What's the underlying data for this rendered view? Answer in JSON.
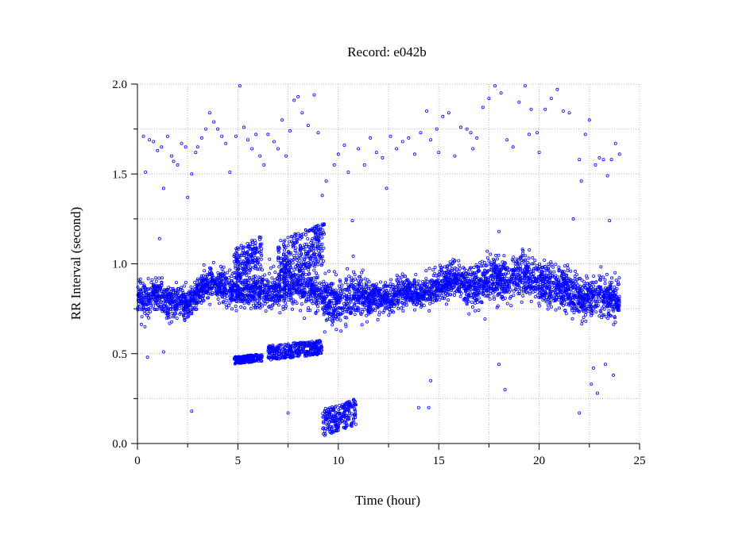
{
  "chart_data": {
    "type": "scatter",
    "title": "Record:  e042b",
    "xlabel": "Time (hour)",
    "ylabel": "RR Interval (second)",
    "xlim": [
      0,
      25
    ],
    "ylim": [
      0,
      2
    ],
    "xticks": [
      "0",
      "5",
      "10",
      "15",
      "20",
      "25"
    ],
    "yticks": [
      "0.0",
      "0.5",
      "1.0",
      "1.5",
      "2.0"
    ],
    "grid": true,
    "marker_color": "#0000ff",
    "series": [
      {
        "baseline": [
          [
            0.0,
            0.82
          ],
          [
            0.5,
            0.8
          ],
          [
            1.0,
            0.84
          ],
          [
            1.5,
            0.78
          ],
          [
            2.0,
            0.8
          ],
          [
            2.5,
            0.76
          ],
          [
            3.0,
            0.84
          ],
          [
            3.5,
            0.9
          ],
          [
            4.0,
            0.88
          ],
          [
            4.5,
            0.86
          ],
          [
            5.0,
            0.85
          ],
          [
            5.5,
            0.84
          ],
          [
            6.0,
            0.86
          ],
          [
            6.5,
            0.84
          ],
          [
            7.0,
            0.85
          ],
          [
            7.5,
            0.86
          ],
          [
            8.0,
            0.88
          ],
          [
            8.5,
            0.86
          ],
          [
            9.0,
            0.82
          ],
          [
            9.5,
            0.8
          ],
          [
            10.0,
            0.78
          ],
          [
            10.5,
            0.8
          ],
          [
            11.0,
            0.82
          ],
          [
            11.5,
            0.8
          ],
          [
            12.0,
            0.8
          ],
          [
            12.5,
            0.82
          ],
          [
            13.0,
            0.84
          ],
          [
            13.5,
            0.84
          ],
          [
            14.0,
            0.82
          ],
          [
            14.5,
            0.86
          ],
          [
            15.0,
            0.88
          ],
          [
            15.5,
            0.9
          ],
          [
            16.0,
            0.9
          ],
          [
            16.5,
            0.88
          ],
          [
            17.0,
            0.88
          ],
          [
            17.5,
            0.9
          ],
          [
            18.0,
            0.92
          ],
          [
            18.5,
            0.9
          ],
          [
            19.0,
            0.94
          ],
          [
            19.5,
            0.92
          ],
          [
            20.0,
            0.9
          ],
          [
            20.5,
            0.88
          ],
          [
            21.0,
            0.88
          ],
          [
            21.5,
            0.86
          ],
          [
            22.0,
            0.8
          ],
          [
            22.5,
            0.8
          ],
          [
            23.0,
            0.82
          ],
          [
            23.5,
            0.8
          ],
          [
            24.0,
            0.8
          ]
        ],
        "spread": [
          [
            0.0,
            0.08
          ],
          [
            3.0,
            0.07
          ],
          [
            9.0,
            0.09
          ],
          [
            10.5,
            0.12
          ],
          [
            12.0,
            0.07
          ],
          [
            15.0,
            0.08
          ],
          [
            17.5,
            0.1
          ],
          [
            21.0,
            0.1
          ],
          [
            23.0,
            0.09
          ],
          [
            24.0,
            0.08
          ]
        ],
        "clusters": [
          {
            "x": [
              4.8,
              6.2
            ],
            "y": [
              0.45,
              0.49
            ]
          },
          {
            "x": [
              6.5,
              9.2
            ],
            "y": [
              0.48,
              0.56
            ]
          },
          {
            "x": [
              9.2,
              10.9
            ],
            "y": [
              0.07,
              0.22
            ]
          },
          {
            "x": [
              4.8,
              6.2
            ],
            "y": [
              0.94,
              1.12
            ]
          },
          {
            "x": [
              7.0,
              9.3
            ],
            "y": [
              0.95,
              1.18
            ]
          }
        ],
        "outliers": [
          [
            0.3,
            1.71
          ],
          [
            0.4,
            1.51
          ],
          [
            0.6,
            1.69
          ],
          [
            0.8,
            1.68
          ],
          [
            1.0,
            1.63
          ],
          [
            1.2,
            1.65
          ],
          [
            1.3,
            1.42
          ],
          [
            1.5,
            1.71
          ],
          [
            1.7,
            1.6
          ],
          [
            1.8,
            1.57
          ],
          [
            2.0,
            1.55
          ],
          [
            2.2,
            1.67
          ],
          [
            2.4,
            1.65
          ],
          [
            2.5,
            1.37
          ],
          [
            2.7,
            1.5
          ],
          [
            2.9,
            1.62
          ],
          [
            3.0,
            1.65
          ],
          [
            3.2,
            1.7
          ],
          [
            3.4,
            1.75
          ],
          [
            3.6,
            1.84
          ],
          [
            3.8,
            1.79
          ],
          [
            4.0,
            1.75
          ],
          [
            4.2,
            1.71
          ],
          [
            4.4,
            1.67
          ],
          [
            4.6,
            1.51
          ],
          [
            4.9,
            1.71
          ],
          [
            5.1,
            1.99
          ],
          [
            5.3,
            1.76
          ],
          [
            5.5,
            1.69
          ],
          [
            5.7,
            1.64
          ],
          [
            5.9,
            1.72
          ],
          [
            6.1,
            1.6
          ],
          [
            6.3,
            1.55
          ],
          [
            6.5,
            1.72
          ],
          [
            6.8,
            1.68
          ],
          [
            7.0,
            1.64
          ],
          [
            7.2,
            1.8
          ],
          [
            7.4,
            1.6
          ],
          [
            7.6,
            1.74
          ],
          [
            7.8,
            1.91
          ],
          [
            8.0,
            1.93
          ],
          [
            8.2,
            1.84
          ],
          [
            8.5,
            1.77
          ],
          [
            8.8,
            1.94
          ],
          [
            9.0,
            1.73
          ],
          [
            9.2,
            1.38
          ],
          [
            9.4,
            1.46
          ],
          [
            9.8,
            1.55
          ],
          [
            10.0,
            1.61
          ],
          [
            10.3,
            1.66
          ],
          [
            10.5,
            1.51
          ],
          [
            10.7,
            1.24
          ],
          [
            11.0,
            1.64
          ],
          [
            11.3,
            1.55
          ],
          [
            11.6,
            1.7
          ],
          [
            11.9,
            1.62
          ],
          [
            12.2,
            1.59
          ],
          [
            12.4,
            1.42
          ],
          [
            12.6,
            1.71
          ],
          [
            12.9,
            1.64
          ],
          [
            13.2,
            1.68
          ],
          [
            13.5,
            1.7
          ],
          [
            13.8,
            1.61
          ],
          [
            14.1,
            1.73
          ],
          [
            14.4,
            1.85
          ],
          [
            14.6,
            1.69
          ],
          [
            14.9,
            1.75
          ],
          [
            15.2,
            1.82
          ],
          [
            15.5,
            1.84
          ],
          [
            15.8,
            1.6
          ],
          [
            16.1,
            1.76
          ],
          [
            16.4,
            1.75
          ],
          [
            16.7,
            1.64
          ],
          [
            16.9,
            1.7
          ],
          [
            17.2,
            1.87
          ],
          [
            17.5,
            1.92
          ],
          [
            17.8,
            1.99
          ],
          [
            18.1,
            1.95
          ],
          [
            18.4,
            1.69
          ],
          [
            18.7,
            1.65
          ],
          [
            19.0,
            1.9
          ],
          [
            19.3,
            1.99
          ],
          [
            19.6,
            1.86
          ],
          [
            19.9,
            1.73
          ],
          [
            20.0,
            1.62
          ],
          [
            20.3,
            1.86
          ],
          [
            20.6,
            1.92
          ],
          [
            20.9,
            1.97
          ],
          [
            21.2,
            1.85
          ],
          [
            21.5,
            1.84
          ],
          [
            22.0,
            1.58
          ],
          [
            22.3,
            1.72
          ],
          [
            22.5,
            1.8
          ],
          [
            22.8,
            1.55
          ],
          [
            23.0,
            1.59
          ],
          [
            23.2,
            1.58
          ],
          [
            23.4,
            1.49
          ],
          [
            23.6,
            1.58
          ],
          [
            23.8,
            1.67
          ],
          [
            24.0,
            1.61
          ],
          [
            21.7,
            1.25
          ],
          [
            22.1,
            1.46
          ],
          [
            23.5,
            1.24
          ],
          [
            18.3,
            0.3
          ],
          [
            18.0,
            0.44
          ],
          [
            14.0,
            0.2
          ],
          [
            14.5,
            0.2
          ],
          [
            14.6,
            0.35
          ],
          [
            22.0,
            0.17
          ],
          [
            22.6,
            0.33
          ],
          [
            22.9,
            0.28
          ],
          [
            2.7,
            0.18
          ],
          [
            7.5,
            0.17
          ],
          [
            15.0,
            1.62
          ],
          [
            16.6,
            1.73
          ],
          [
            19.5,
            1.72
          ],
          [
            0.5,
            0.48
          ],
          [
            1.3,
            0.51
          ],
          [
            9.7,
            0.66
          ],
          [
            22.7,
            0.42
          ],
          [
            23.3,
            0.44
          ],
          [
            23.7,
            0.38
          ],
          [
            1.1,
            1.14
          ],
          [
            18.0,
            1.18
          ]
        ]
      }
    ]
  }
}
